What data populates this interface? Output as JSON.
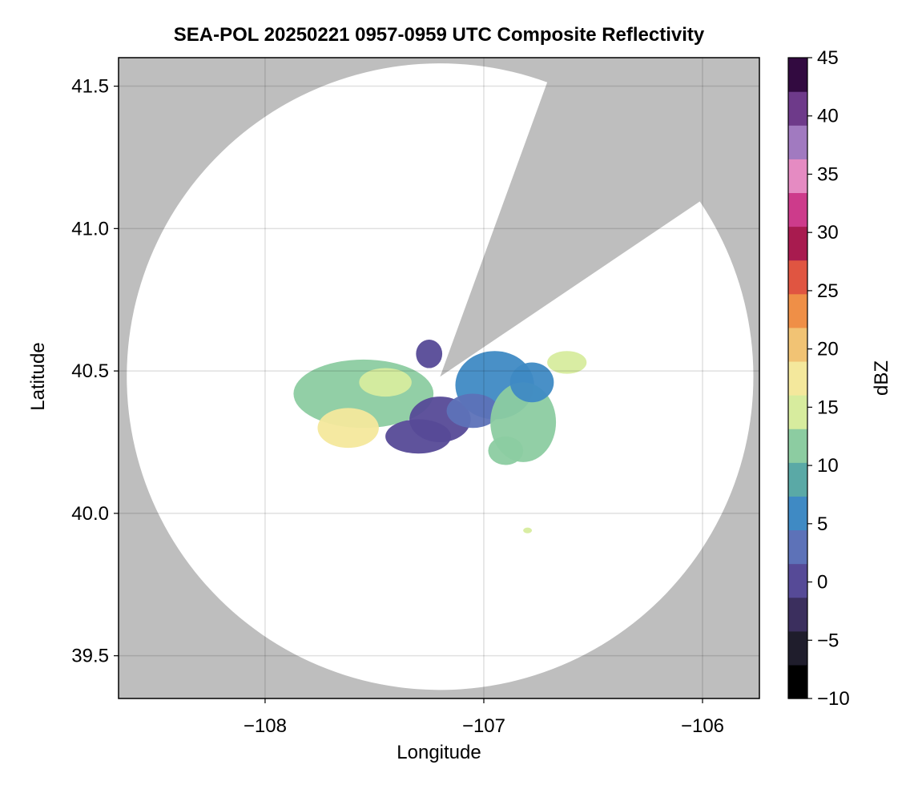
{
  "chart_data": {
    "type": "heatmap",
    "title": "SEA-POL 20250221 0957-0959 UTC Composite Reflectivity",
    "xlabel": "Longitude",
    "ylabel": "Latitude",
    "xlim": [
      -108.67,
      -105.74
    ],
    "ylim": [
      39.35,
      41.6
    ],
    "x_ticks": [
      -108,
      -107,
      -106
    ],
    "x_tick_labels": [
      "−108",
      "−107",
      "−106"
    ],
    "y_ticks": [
      39.5,
      40.0,
      40.5,
      41.0,
      41.5
    ],
    "y_tick_labels": [
      "39.5",
      "40.0",
      "40.5",
      "41.0",
      "41.5"
    ],
    "grid": true,
    "background_color": "#bebebe",
    "coverage_color": "#ffffff",
    "radar": {
      "center_lon": -107.2,
      "center_lat": 40.48,
      "range_lat_deg": 1.1,
      "blocked_sectors_deg_from_north": [
        [
          20,
          56
        ]
      ]
    },
    "colorbar": {
      "label": "dBZ",
      "min": -10,
      "max": 45,
      "ticks": [
        -10,
        -5,
        0,
        5,
        10,
        15,
        20,
        25,
        30,
        35,
        40,
        45
      ],
      "tick_labels": [
        "−10",
        "−5",
        "0",
        "5",
        "10",
        "15",
        "20",
        "25",
        "30",
        "35",
        "40",
        "45"
      ],
      "colors": [
        "#000000",
        "#1f1d2c",
        "#3b2f5e",
        "#564a97",
        "#5d72b8",
        "#3f8ac4",
        "#5aa9a6",
        "#8ccca1",
        "#d7ec9e",
        "#f4e89c",
        "#f1c374",
        "#ef8f47",
        "#e05541",
        "#a81b4f",
        "#cd3b8b",
        "#e58bc2",
        "#a17ac0",
        "#6e3a8a",
        "#320a40"
      ]
    },
    "echoes": [
      {
        "lon": -107.55,
        "lat": 40.42,
        "rlon": 0.32,
        "rlat": 0.12,
        "dbz": 13
      },
      {
        "lon": -107.62,
        "lat": 40.3,
        "rlon": 0.14,
        "rlat": 0.07,
        "dbz": 17
      },
      {
        "lon": -107.45,
        "lat": 40.46,
        "rlon": 0.12,
        "rlat": 0.05,
        "dbz": 16
      },
      {
        "lon": -107.3,
        "lat": 40.27,
        "rlon": 0.15,
        "rlat": 0.06,
        "dbz": 0
      },
      {
        "lon": -107.2,
        "lat": 40.33,
        "rlon": 0.14,
        "rlat": 0.08,
        "dbz": 1
      },
      {
        "lon": -106.95,
        "lat": 40.45,
        "rlon": 0.18,
        "rlat": 0.12,
        "dbz": 7
      },
      {
        "lon": -107.05,
        "lat": 40.36,
        "rlon": 0.12,
        "rlat": 0.06,
        "dbz": 3
      },
      {
        "lon": -106.82,
        "lat": 40.32,
        "rlon": 0.15,
        "rlat": 0.14,
        "dbz": 11
      },
      {
        "lon": -106.78,
        "lat": 40.46,
        "rlon": 0.1,
        "rlat": 0.07,
        "dbz": 5
      },
      {
        "lon": -106.62,
        "lat": 40.53,
        "rlon": 0.09,
        "rlat": 0.04,
        "dbz": 15
      },
      {
        "lon": -106.9,
        "lat": 40.22,
        "rlon": 0.08,
        "rlat": 0.05,
        "dbz": 13
      },
      {
        "lon": -107.25,
        "lat": 40.56,
        "rlon": 0.06,
        "rlat": 0.05,
        "dbz": 1
      },
      {
        "lon": -106.8,
        "lat": 39.94,
        "rlon": 0.02,
        "rlat": 0.01,
        "dbz": 15
      }
    ]
  }
}
